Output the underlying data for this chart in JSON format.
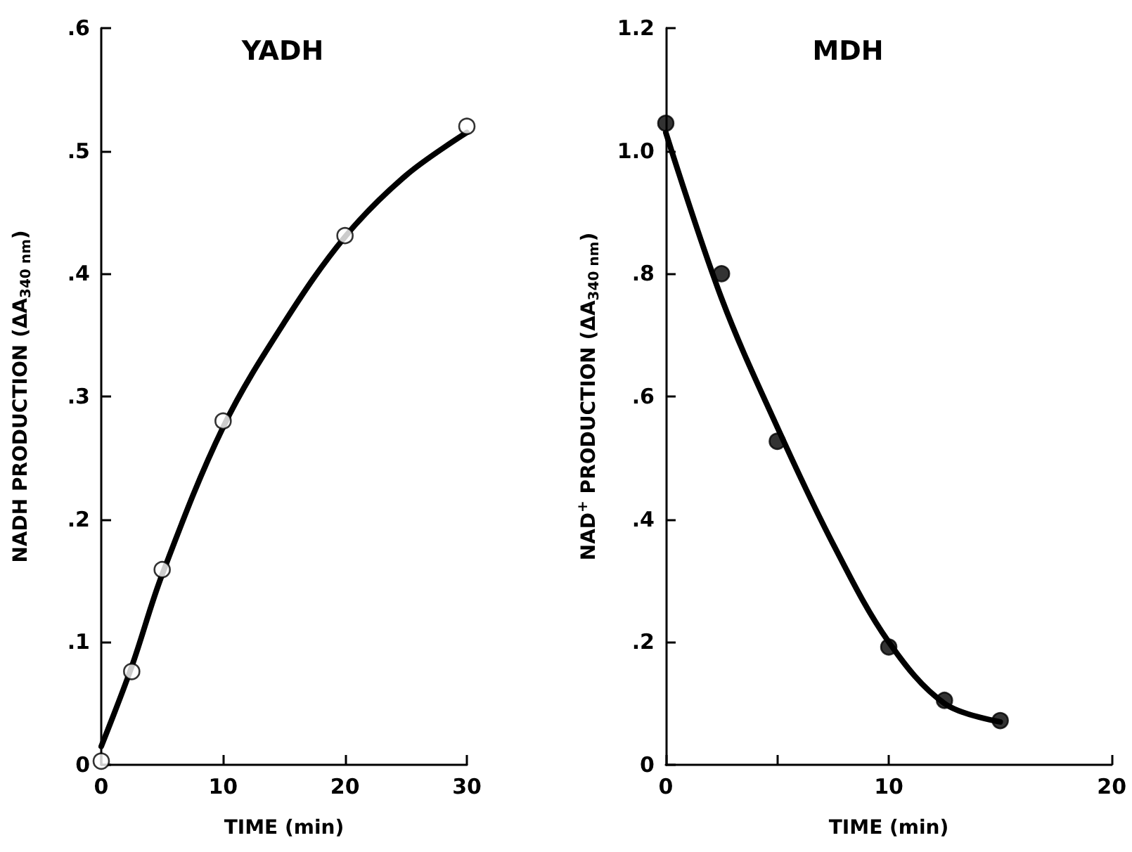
{
  "chart_data": [
    {
      "type": "scatter",
      "title": "YADH",
      "xlabel": "TIME (min)",
      "ylabel": "NADH PRODUCTION (ΔA$_{340 nm}$)",
      "xlim": [
        0,
        30
      ],
      "xticks": [
        0,
        10,
        20,
        30
      ],
      "ylim": [
        0,
        0.6
      ],
      "yticks": [
        {
          "value": 0,
          "label": "0"
        },
        {
          "value": 0.1,
          "label": ".1"
        },
        {
          "value": 0.2,
          "label": ".2"
        },
        {
          "value": 0.3,
          "label": ".3"
        },
        {
          "value": 0.4,
          "label": ".4"
        },
        {
          "value": 0.5,
          "label": ".5"
        },
        {
          "value": 0.6,
          "label": ".6"
        }
      ],
      "marker": "circle",
      "grid": false,
      "series": [
        {
          "type": "line",
          "marker": "none",
          "color": "#000000",
          "x": [
            0,
            2.5,
            5,
            10,
            15,
            20,
            25,
            30
          ],
          "values": [
            0.015,
            0.08,
            0.155,
            0.275,
            0.36,
            0.43,
            0.48,
            0.515
          ]
        },
        {
          "type": "scatter",
          "color": "#ffffff",
          "x": [
            0,
            2.5,
            5,
            10,
            20,
            30
          ],
          "values": [
            0.003,
            0.076,
            0.159,
            0.28,
            0.431,
            0.52
          ]
        }
      ]
    },
    {
      "type": "scatter",
      "title": "MDH",
      "xlabel": "TIME (min)",
      "ylabel": "NAD$^{+}$ PRODUCTION (ΔA$_{340 nm}$)",
      "xlim": [
        0,
        20
      ],
      "xticks": [
        0,
        {
          "value": 5,
          "label": null
        },
        10,
        20
      ],
      "ylim": [
        0,
        1.2
      ],
      "yticks": [
        {
          "value": 0,
          "label": "0"
        },
        {
          "value": 0.2,
          "label": ".2"
        },
        {
          "value": 0.4,
          "label": ".4"
        },
        {
          "value": 0.6,
          "label": ".6"
        },
        {
          "value": 0.8,
          "label": ".8"
        },
        {
          "value": 1.0,
          "label": "1.0"
        },
        {
          "value": 1.2,
          "label": "1.2"
        }
      ],
      "marker": "circle",
      "grid": false,
      "series": [
        {
          "type": "line",
          "marker": "none",
          "color": "#000000",
          "x": [
            0,
            2.5,
            5,
            7.5,
            10,
            12.5,
            15
          ],
          "values": [
            1.03,
            0.76,
            0.55,
            0.36,
            0.2,
            0.1,
            0.07
          ]
        },
        {
          "type": "scatter",
          "color": "#000000",
          "x": [
            0,
            2.5,
            5,
            10,
            12.5,
            15
          ],
          "values": [
            1.045,
            0.8,
            0.527,
            0.192,
            0.105,
            0.072
          ]
        }
      ]
    }
  ]
}
